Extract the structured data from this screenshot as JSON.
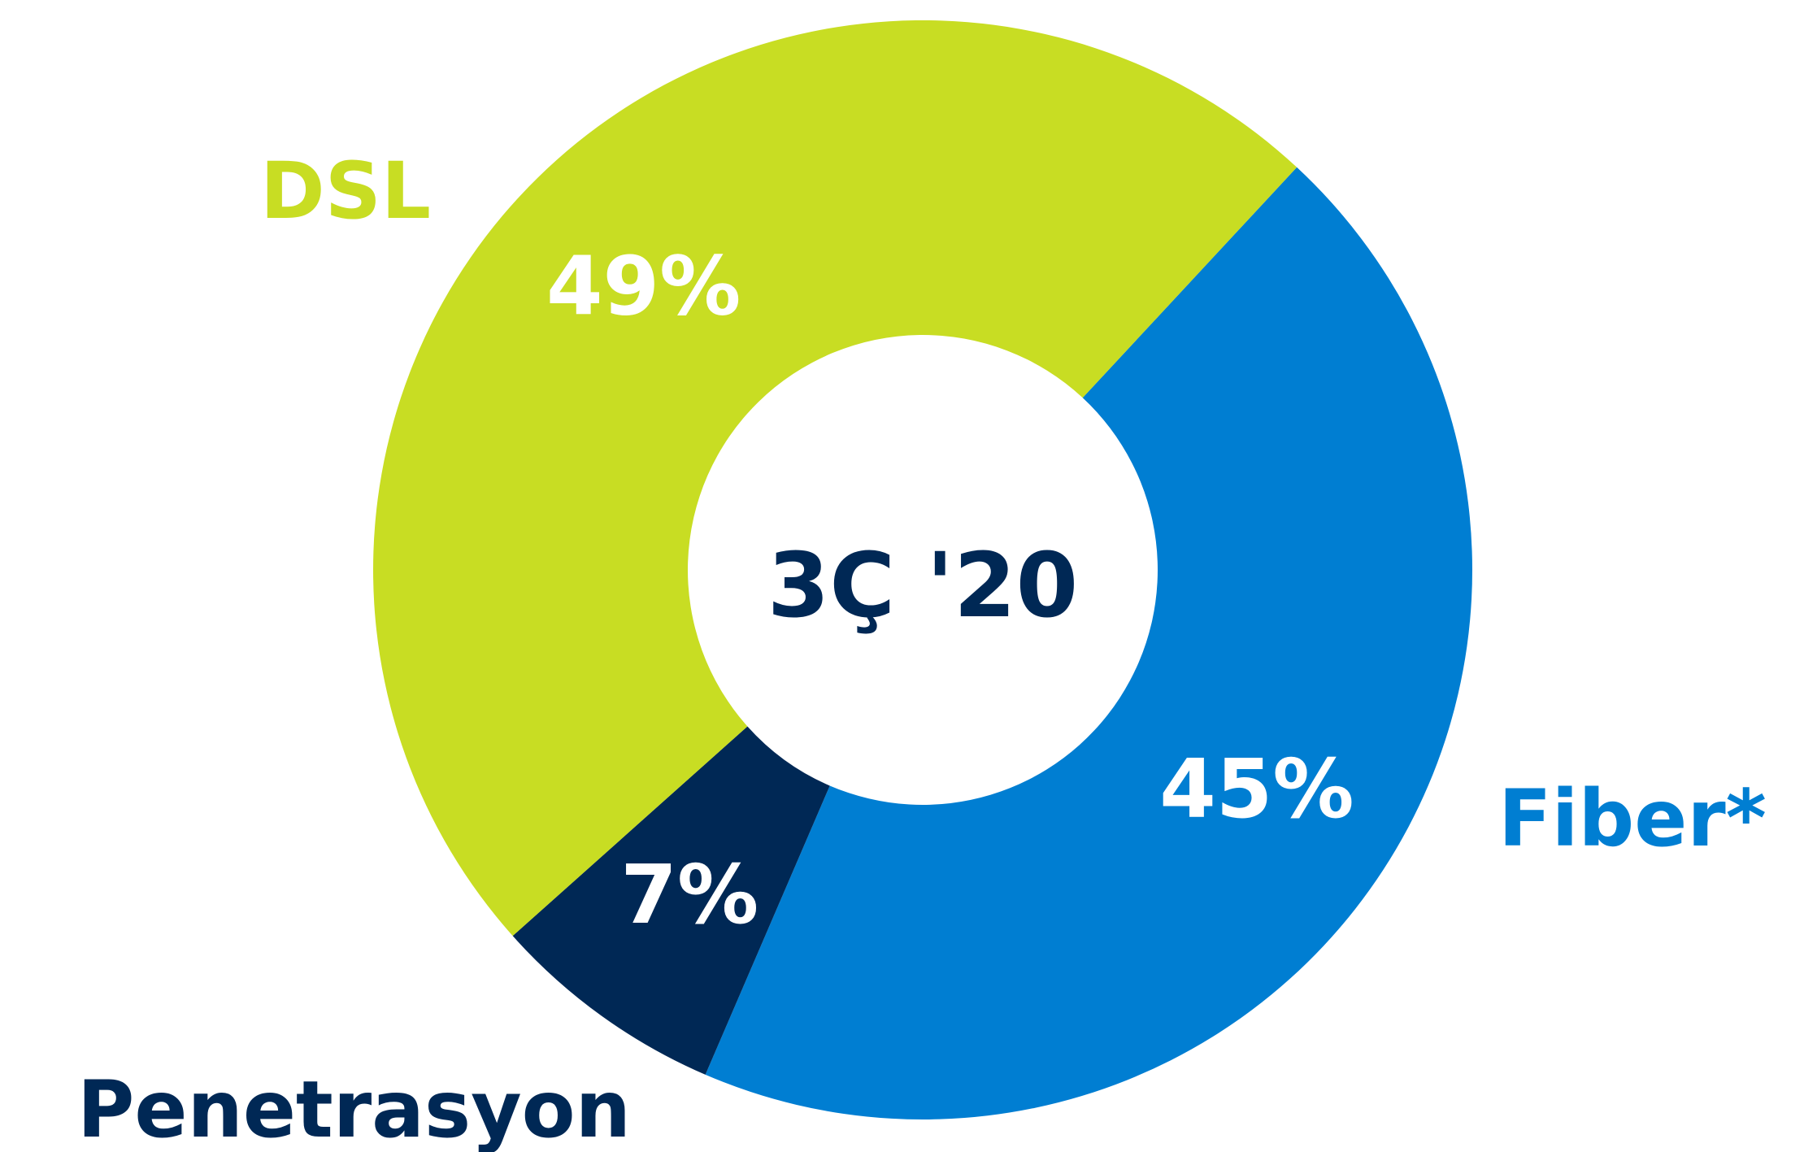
{
  "chart_data": {
    "type": "pie",
    "center_label": "3Ç '20",
    "slices": [
      {
        "category": "Fiber*",
        "value": 45,
        "label": "45%",
        "color": "#007ED2"
      },
      {
        "category": "Penetrasyon",
        "value": 7,
        "label": "7%",
        "color": "#002855"
      },
      {
        "category": "DSL",
        "value": 49,
        "label": "49%",
        "color": "#C8DD23"
      }
    ],
    "text_colors": {
      "center": "#002855",
      "slice_values": "#FFFFFF"
    },
    "legend": "none"
  }
}
